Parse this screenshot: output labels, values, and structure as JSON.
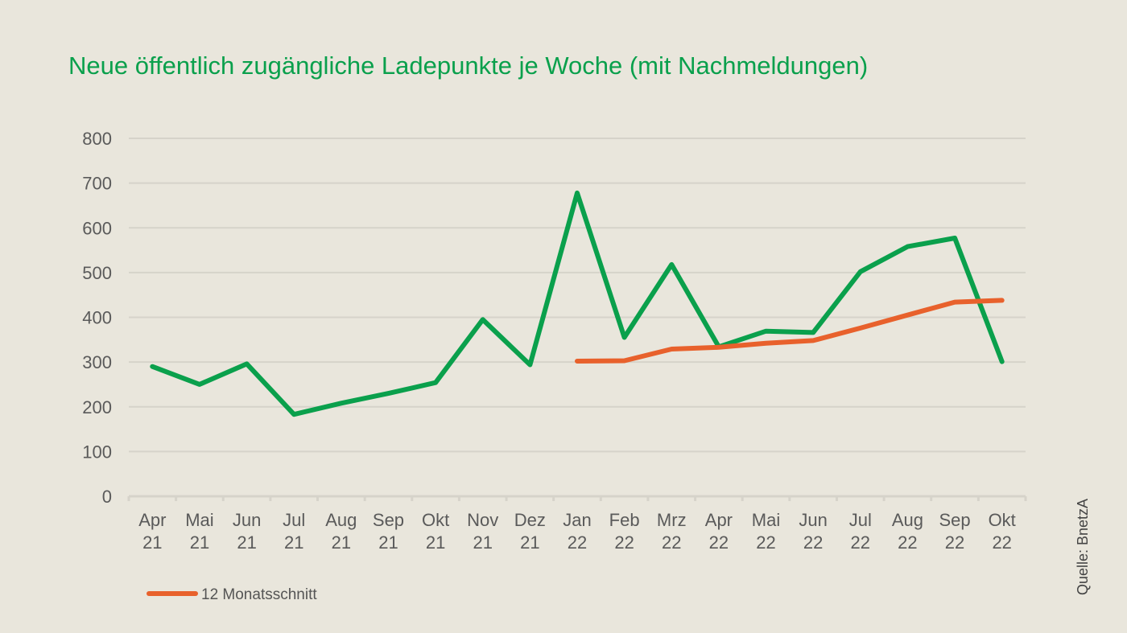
{
  "chart_data": {
    "type": "line",
    "title": "Neue öffentlich zugängliche Ladepunkte je Woche (mit Nachmeldungen)",
    "categories": [
      [
        "Apr",
        "21"
      ],
      [
        "Mai",
        "21"
      ],
      [
        "Jun",
        "21"
      ],
      [
        "Jul",
        "21"
      ],
      [
        "Aug",
        "21"
      ],
      [
        "Sep",
        "21"
      ],
      [
        "Okt",
        "21"
      ],
      [
        "Nov",
        "21"
      ],
      [
        "Dez",
        "21"
      ],
      [
        "Jan",
        "22"
      ],
      [
        "Feb",
        "22"
      ],
      [
        "Mrz",
        "22"
      ],
      [
        "Apr",
        "22"
      ],
      [
        "Mai",
        "22"
      ],
      [
        "Jun",
        "22"
      ],
      [
        "Jul",
        "22"
      ],
      [
        "Aug",
        "22"
      ],
      [
        "Sep",
        "22"
      ],
      [
        "Okt",
        "22"
      ]
    ],
    "ylim": [
      0,
      800
    ],
    "yticks": [
      0,
      100,
      200,
      300,
      400,
      500,
      600,
      700,
      800
    ],
    "grid": true,
    "series": [
      {
        "name": "",
        "color": "#0aa04c",
        "values": [
          290,
          250,
          296,
          183,
          208,
          230,
          254,
          395,
          294,
          678,
          355,
          518,
          334,
          369,
          366,
          502,
          558,
          577,
          301
        ]
      },
      {
        "name": "12 Monatsschnitt",
        "color": "#e8612c",
        "values": [
          null,
          null,
          null,
          null,
          null,
          null,
          null,
          null,
          null,
          302,
          303,
          329,
          333,
          342,
          348,
          376,
          405,
          434,
          438
        ]
      }
    ],
    "legend_position": "bottom-left",
    "source": "Quelle: BnetzA"
  }
}
